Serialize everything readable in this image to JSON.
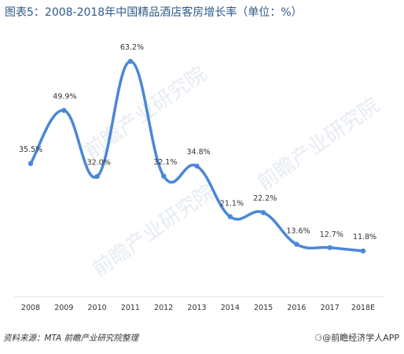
{
  "title": "图表5：2008-2018年中国精品酒店客房增长率（单位：%）",
  "footer": {
    "source": "资料来源：MTA  前瞻产业研究院整理",
    "brand": "@前瞻经济学人APP",
    "brand_icon": "wechat-like-bubble-icon"
  },
  "watermark": "前瞻产业研究院",
  "colors": {
    "line": "#4a87d8",
    "title": "#2e5a8a"
  },
  "chart_data": {
    "type": "line",
    "categories": [
      "2008",
      "2009",
      "2010",
      "2011",
      "2012",
      "2013",
      "2014",
      "2015",
      "2016",
      "2017",
      "2018E"
    ],
    "series": [
      {
        "values": [
          35.5,
          49.9,
          32.0,
          63.2,
          32.1,
          34.8,
          21.1,
          22.2,
          13.6,
          12.7,
          11.8
        ]
      }
    ],
    "data_labels": [
      "35.5%",
      "49.9%",
      "32.0%",
      "63.2%",
      "32.1%",
      "34.8%",
      "21.1%",
      "22.2%",
      "13.6%",
      "12.7%",
      "11.8%"
    ],
    "smooth": true,
    "grid": false,
    "y_axis_visible": false
  }
}
